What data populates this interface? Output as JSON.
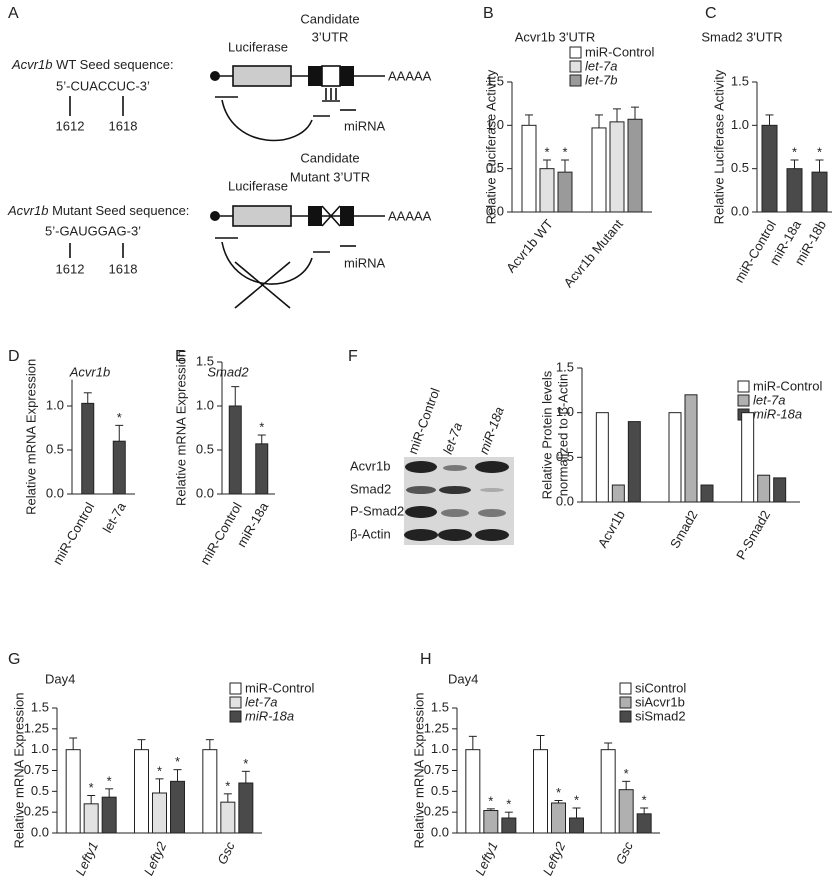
{
  "diagram": {
    "panel": "A",
    "wt": {
      "gene": "Acvr1b",
      "label": "WT Seed sequence:",
      "seq": "5’-CUACCUC-3’",
      "pos": [
        "1612",
        "1618"
      ],
      "luciferase": "Luciferase",
      "utr": [
        "Candidate",
        "3’UTR"
      ],
      "polya": "AAAAA",
      "mirna": "miRNA"
    },
    "mutant": {
      "gene": "Acvr1b",
      "label": "Mutant Seed sequence:",
      "seq": "5’-GAUGGAG-3’",
      "pos": [
        "1612",
        "1618"
      ],
      "luciferase": "Luciferase",
      "utr": [
        "Candidate",
        "Mutant 3’UTR"
      ],
      "polya": "AAAAA",
      "mirna": "miRNA"
    }
  },
  "blot": {
    "panel": "F",
    "lanes": [
      "miR-Control",
      "let-7a",
      "miR-18a"
    ],
    "rows": [
      "Acvr1b",
      "Smad2",
      "P-Smad2",
      "β-Actin"
    ]
  },
  "chart_data": [
    {
      "type": "bar",
      "panel": "B",
      "title": "Acvr1b 3'UTR",
      "ylabel": "Relative Luciferase Activity",
      "categories": [
        "Acvr1b WT",
        "Acvr1b Mutant"
      ],
      "series": [
        {
          "name": "miR-Control",
          "color": "#ffffff",
          "values": [
            1.0,
            0.97
          ],
          "errors": [
            0.12,
            0.15
          ],
          "significance": [
            null,
            null
          ]
        },
        {
          "name": "let-7a",
          "italic": true,
          "color": "#e2e2e2",
          "values": [
            0.5,
            1.04
          ],
          "errors": [
            0.1,
            0.15
          ],
          "significance": [
            "*",
            null
          ]
        },
        {
          "name": "let-7b",
          "italic": true,
          "color": "#9a9a9a",
          "values": [
            0.46,
            1.07
          ],
          "errors": [
            0.14,
            0.14
          ],
          "significance": [
            "*",
            null
          ]
        }
      ],
      "ylim": [
        0,
        1.5
      ],
      "yticks": [
        {
          "value": 0,
          "label": "0.0"
        },
        0.5,
        {
          "value": 1,
          "label": "1.0"
        },
        1.5
      ]
    },
    {
      "type": "bar",
      "panel": "C",
      "title": "Smad2 3'UTR",
      "ylabel": "Relative Luciferase Activity",
      "categories": [
        "miR-Control",
        "miR-18a",
        "miR-18b"
      ],
      "color": "#4a4a4a",
      "values": [
        1.0,
        0.5,
        0.46
      ],
      "errors": [
        0.12,
        0.1,
        0.14
      ],
      "significance": [
        null,
        "*",
        "*"
      ],
      "ylim": [
        0,
        1.5
      ],
      "yticks": [
        {
          "value": 0,
          "label": "0.0"
        },
        0.5,
        {
          "value": 1,
          "label": "1.0"
        },
        1.5
      ]
    },
    {
      "type": "bar",
      "panel": "D",
      "title": "Acvr1b",
      "title_italic": true,
      "ylabel": "Relative mRNA Expression",
      "categories": [
        "miR-Control",
        "let-7a"
      ],
      "color": "#4a4a4a",
      "values": [
        1.03,
        0.6
      ],
      "errors": [
        0.12,
        0.18
      ],
      "significance": [
        null,
        "*"
      ],
      "ylim": [
        0,
        1.3
      ],
      "yticks": [
        {
          "value": 0,
          "label": "0.0"
        },
        0.5,
        {
          "value": 1,
          "label": "1.0"
        }
      ]
    },
    {
      "type": "bar",
      "panel": "E",
      "title": "Smad2",
      "title_italic": true,
      "ylabel": "Relative mRNA Expression",
      "categories": [
        "miR-Control",
        "miR-18a"
      ],
      "color": "#4a4a4a",
      "values": [
        1.0,
        0.57
      ],
      "errors": [
        0.22,
        0.1
      ],
      "significance": [
        null,
        "*"
      ],
      "ylim": [
        0,
        1.5
      ],
      "yticks": [
        {
          "value": 0,
          "label": "0.0"
        },
        0.5,
        {
          "value": 1,
          "label": "1.0"
        },
        1.5
      ]
    },
    {
      "type": "bar",
      "ylabel": [
        "Relative Protein levels",
        "normalized to β-Actin"
      ],
      "categories": [
        "Acvr1b",
        "Smad2",
        "P-Smad2"
      ],
      "series": [
        {
          "name": "miR-Control",
          "color": "#ffffff",
          "values": [
            1.0,
            1.0,
            1.0
          ]
        },
        {
          "name": "let-7a",
          "italic": true,
          "color": "#b0b0b0",
          "values": [
            0.19,
            1.2,
            0.3
          ]
        },
        {
          "name": "miR-18a",
          "italic": true,
          "color": "#4a4a4a",
          "values": [
            0.9,
            0.19,
            0.27
          ]
        }
      ],
      "ylim": [
        0,
        1.5
      ],
      "yticks": [
        {
          "value": 0,
          "label": "0.0"
        },
        0.5,
        {
          "value": 1,
          "label": "1.0"
        },
        1.5
      ]
    },
    {
      "type": "bar",
      "panel": "G",
      "title": "Day4",
      "ylabel": "Relative mRNA Expression",
      "italic_categories": true,
      "categories": [
        "Lefty1",
        "Lefty2",
        "Gsc"
      ],
      "series": [
        {
          "name": "miR-Control",
          "color": "#ffffff",
          "values": [
            1.0,
            1.0,
            1.0
          ],
          "errors": [
            0.14,
            0.12,
            0.12
          ],
          "significance": [
            null,
            null,
            null
          ]
        },
        {
          "name": "let-7a",
          "italic": true,
          "color": "#e2e2e2",
          "values": [
            0.35,
            0.48,
            0.37
          ],
          "errors": [
            0.1,
            0.17,
            0.1
          ],
          "significance": [
            "*",
            "*",
            "*"
          ]
        },
        {
          "name": "miR-18a",
          "italic": true,
          "color": "#4a4a4a",
          "values": [
            0.43,
            0.62,
            0.6
          ],
          "errors": [
            0.1,
            0.14,
            0.14
          ],
          "significance": [
            "*",
            "*",
            "*"
          ]
        }
      ],
      "ylim": [
        0,
        1.5
      ],
      "yticks": [
        {
          "value": 0,
          "label": "0.0"
        },
        0.25,
        0.5,
        0.75,
        {
          "value": 1,
          "label": "1.0"
        },
        1.25,
        1.5
      ]
    },
    {
      "type": "bar",
      "panel": "H",
      "title": "Day4",
      "ylabel": "Relative mRNA Expression",
      "italic_categories": true,
      "categories": [
        "Lefty1",
        "Lefty2",
        "Gsc"
      ],
      "series": [
        {
          "name": "siControl",
          "color": "#ffffff",
          "values": [
            1.0,
            1.0,
            1.0
          ],
          "errors": [
            0.16,
            0.17,
            0.08
          ],
          "significance": [
            null,
            null,
            null
          ]
        },
        {
          "name": "siAcvr1b",
          "color": "#b0b0b0",
          "values": [
            0.27,
            0.36,
            0.52
          ],
          "errors": [
            0.02,
            0.03,
            0.1
          ],
          "significance": [
            "*",
            "*",
            "*"
          ]
        },
        {
          "name": "siSmad2",
          "color": "#4a4a4a",
          "values": [
            0.18,
            0.18,
            0.23
          ],
          "errors": [
            0.07,
            0.12,
            0.07
          ],
          "significance": [
            "*",
            "*",
            "*"
          ]
        }
      ],
      "ylim": [
        0,
        1.5
      ],
      "yticks": [
        {
          "value": 0,
          "label": "0.0"
        },
        0.25,
        0.5,
        0.75,
        {
          "value": 1,
          "label": "1.0"
        },
        1.25,
        1.5
      ]
    }
  ]
}
